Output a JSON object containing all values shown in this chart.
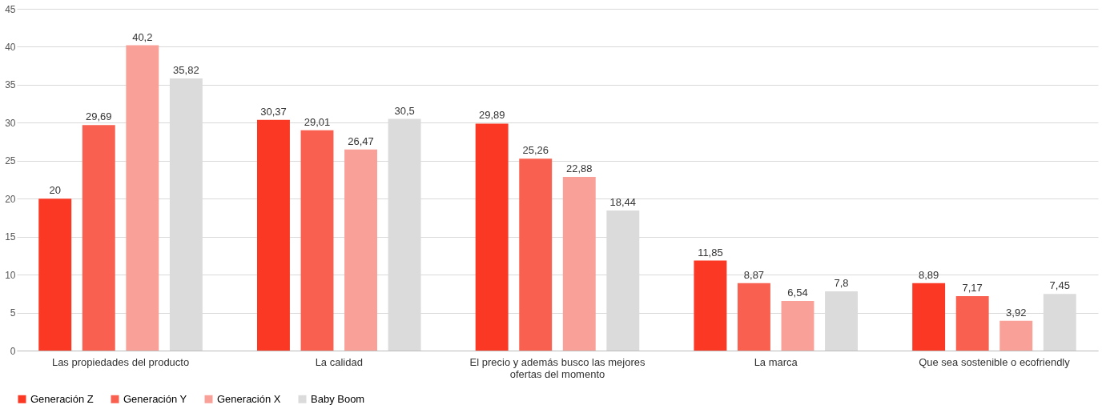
{
  "chart_data": {
    "type": "bar",
    "categories": [
      "Las propiedades del producto",
      "La calidad",
      "El precio y además busco las mejores ofertas del momento",
      "La marca",
      "Que sea sostenible o ecofriendly"
    ],
    "series": [
      {
        "name": "Generación Z",
        "color": "#fa3823",
        "values": [
          20,
          30.37,
          29.89,
          11.85,
          8.89
        ],
        "value_labels": [
          "20",
          "30,37",
          "29,89",
          "11,85",
          "8,89"
        ]
      },
      {
        "name": "Generación Y",
        "color": "#f9604f",
        "values": [
          29.69,
          29.01,
          25.26,
          8.87,
          7.17
        ],
        "value_labels": [
          "29,69",
          "29,01",
          "25,26",
          "8,87",
          "7,17"
        ]
      },
      {
        "name": "Generación X",
        "color": "#f9a198",
        "values": [
          40.2,
          26.47,
          22.88,
          6.54,
          3.92
        ],
        "value_labels": [
          "40,2",
          "26,47",
          "22,88",
          "6,54",
          "3,92"
        ]
      },
      {
        "name": "Baby Boom",
        "color": "#dbdbdb",
        "values": [
          35.82,
          30.5,
          18.44,
          7.8,
          7.45
        ],
        "value_labels": [
          "35,82",
          "30,5",
          "18,44",
          "7,8",
          "7,45"
        ]
      }
    ],
    "ylim": [
      0,
      45
    ],
    "yticks": [
      0,
      5,
      10,
      15,
      20,
      25,
      30,
      35,
      40,
      45
    ],
    "grid": "y",
    "legend": "bottom"
  }
}
